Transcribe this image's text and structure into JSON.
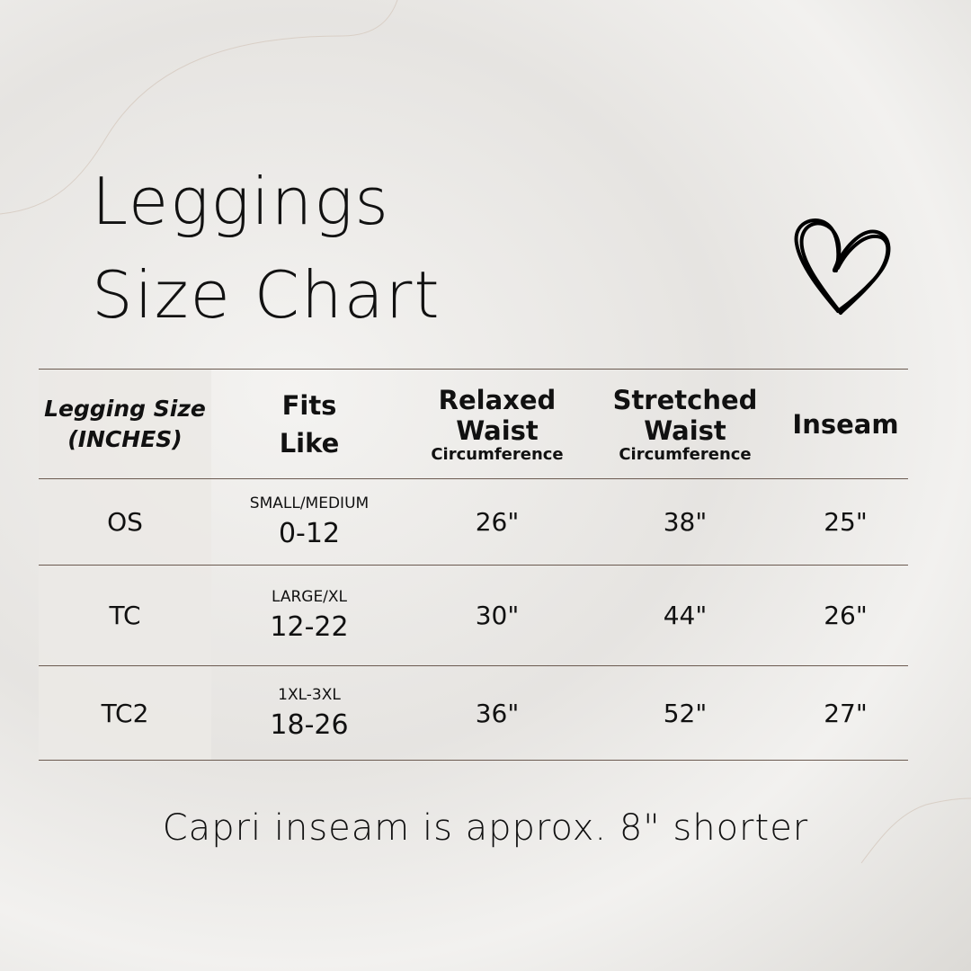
{
  "title": {
    "line1": "Leggings",
    "line2": "Size Chart"
  },
  "icons": {
    "heart": "heart-icon"
  },
  "table": {
    "headers": [
      {
        "line1": "Legging Size",
        "line2": "(INCHES)"
      },
      {
        "line1": "Fits",
        "line2": "Like"
      },
      {
        "line1": "Relaxed",
        "line2": "Waist",
        "sub": "Circumference"
      },
      {
        "line1": "Stretched",
        "line2": "Waist",
        "sub": "Circumference"
      },
      {
        "line1": "Inseam"
      }
    ],
    "rows": [
      {
        "size": "OS",
        "fit_label": "SMALL/MEDIUM",
        "fit_range": "0-12",
        "relaxed": "26\"",
        "stretched": "38\"",
        "inseam": "25\""
      },
      {
        "size": "TC",
        "fit_label": "LARGE/XL",
        "fit_range": "12-22",
        "relaxed": "30\"",
        "stretched": "44\"",
        "inseam": "26\""
      },
      {
        "size": "TC2",
        "fit_label": "1XL-3XL",
        "fit_range": "18-26",
        "relaxed": "36\"",
        "stretched": "52\"",
        "inseam": "27\""
      }
    ]
  },
  "note": "Capri inseam is approx. 8\" shorter",
  "colors": {
    "line": "#6b5a50",
    "shade": "#ebe9e5"
  }
}
